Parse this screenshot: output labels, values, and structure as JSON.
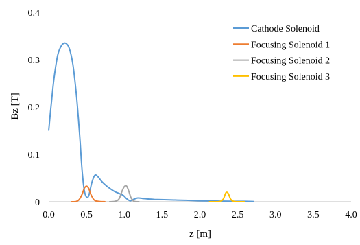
{
  "chart_data": {
    "type": "line",
    "xlabel": "z [m]",
    "ylabel": "Bz [T]",
    "xlim": [
      0,
      4
    ],
    "ylim": [
      0,
      0.4
    ],
    "xticks": [
      "0.0",
      "0.5",
      "1.0",
      "1.5",
      "2.0",
      "2.5",
      "3.0",
      "3.5",
      "4.0"
    ],
    "yticks": [
      "0",
      "0.1",
      "0.2",
      "0.3",
      "0.4"
    ],
    "grid": false,
    "legend_position": "top-right",
    "series": [
      {
        "name": "Cathode Solenoid",
        "color": "#5b9bd5",
        "points": [
          [
            0.0,
            0.15
          ],
          [
            0.03,
            0.2
          ],
          [
            0.07,
            0.26
          ],
          [
            0.12,
            0.31
          ],
          [
            0.17,
            0.33
          ],
          [
            0.22,
            0.335
          ],
          [
            0.27,
            0.325
          ],
          [
            0.32,
            0.29
          ],
          [
            0.37,
            0.22
          ],
          [
            0.41,
            0.14
          ],
          [
            0.44,
            0.07
          ],
          [
            0.47,
            0.025
          ],
          [
            0.5,
            0.01
          ],
          [
            0.53,
            0.013
          ],
          [
            0.57,
            0.04
          ],
          [
            0.61,
            0.056
          ],
          [
            0.65,
            0.053
          ],
          [
            0.7,
            0.043
          ],
          [
            0.76,
            0.034
          ],
          [
            0.82,
            0.027
          ],
          [
            0.88,
            0.021
          ],
          [
            0.94,
            0.017
          ],
          [
            0.99,
            0.013
          ],
          [
            1.02,
            0.008
          ],
          [
            1.05,
            0.004
          ],
          [
            1.08,
            0.002
          ],
          [
            1.12,
            0.005
          ],
          [
            1.18,
            0.008
          ],
          [
            1.24,
            0.007
          ],
          [
            1.3,
            0.006
          ],
          [
            1.4,
            0.005
          ],
          [
            1.6,
            0.004
          ],
          [
            1.8,
            0.003
          ],
          [
            2.0,
            0.002
          ],
          [
            2.2,
            0.0015
          ],
          [
            2.4,
            0.001
          ],
          [
            2.6,
            0.0008
          ],
          [
            2.72,
            0.0005
          ]
        ]
      },
      {
        "name": "Focusing Solenoid 1",
        "color": "#ed7d31",
        "points": [
          [
            0.3,
            0.0
          ],
          [
            0.36,
            0.0005
          ],
          [
            0.4,
            0.004
          ],
          [
            0.44,
            0.015
          ],
          [
            0.47,
            0.028
          ],
          [
            0.5,
            0.033
          ],
          [
            0.53,
            0.028
          ],
          [
            0.56,
            0.015
          ],
          [
            0.6,
            0.004
          ],
          [
            0.65,
            0.001
          ],
          [
            0.75,
            0.0
          ]
        ]
      },
      {
        "name": "Focusing Solenoid 2",
        "color": "#a5a5a5",
        "points": [
          [
            0.8,
            0.0
          ],
          [
            0.88,
            0.001
          ],
          [
            0.93,
            0.006
          ],
          [
            0.97,
            0.022
          ],
          [
            1.0,
            0.032
          ],
          [
            1.03,
            0.033
          ],
          [
            1.06,
            0.022
          ],
          [
            1.09,
            0.008
          ],
          [
            1.13,
            0.001
          ],
          [
            1.2,
            0.0
          ]
        ]
      },
      {
        "name": "Focusing Solenoid 3",
        "color": "#ffc000",
        "points": [
          [
            2.12,
            0.0
          ],
          [
            2.26,
            0.0005
          ],
          [
            2.31,
            0.006
          ],
          [
            2.34,
            0.018
          ],
          [
            2.36,
            0.02
          ],
          [
            2.38,
            0.016
          ],
          [
            2.41,
            0.005
          ],
          [
            2.46,
            0.0005
          ],
          [
            2.6,
            0.0
          ]
        ]
      }
    ]
  }
}
